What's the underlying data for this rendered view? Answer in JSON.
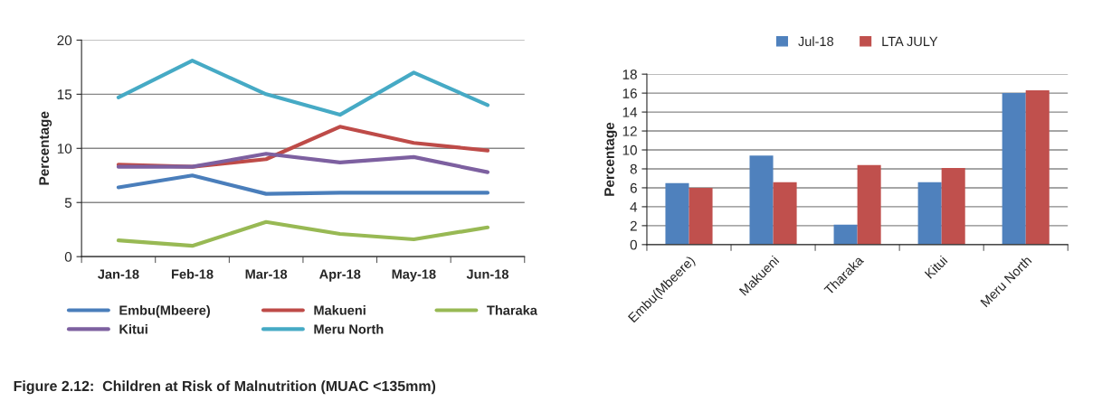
{
  "chart_data": [
    {
      "type": "line",
      "ylabel": "Percentage",
      "categories": [
        "Jan-18",
        "Feb-18",
        "Mar-18",
        "Apr-18",
        "May-18",
        "Jun-18"
      ],
      "ylim": [
        0,
        20
      ],
      "yticks": [
        0,
        5,
        10,
        15,
        20
      ],
      "grid": "y",
      "legend": "bottom",
      "line_style": "solid",
      "series": [
        {
          "name": "Embu(Mbeere)",
          "color": "#4a7ebb",
          "values": [
            6.4,
            7.5,
            5.8,
            5.9,
            5.9,
            5.9
          ]
        },
        {
          "name": "Makueni",
          "color": "#be4b48",
          "values": [
            8.5,
            8.3,
            9.0,
            12.0,
            10.5,
            9.8
          ]
        },
        {
          "name": "Tharaka",
          "color": "#98b954",
          "values": [
            1.5,
            1.0,
            3.2,
            2.1,
            1.6,
            2.7
          ]
        },
        {
          "name": "Kitui",
          "color": "#7d60a0",
          "values": [
            8.3,
            8.3,
            9.5,
            8.7,
            9.2,
            7.8
          ]
        },
        {
          "name": "Meru North",
          "color": "#46aac5",
          "values": [
            14.7,
            18.1,
            15.0,
            13.1,
            17.0,
            14.0
          ]
        }
      ],
      "annotations": [
        "Figure 2.12:  Children at Risk of Malnutrition (MUAC <135mm)"
      ]
    },
    {
      "type": "bar",
      "ylabel": "Percentage",
      "categories": [
        "Embu(Mbeere)",
        "Makueni",
        "Tharaka",
        "Kitui",
        "Meru North"
      ],
      "ylim": [
        0,
        18
      ],
      "yticks": [
        0,
        2,
        4,
        6,
        8,
        10,
        12,
        14,
        16,
        18
      ],
      "grid": "y",
      "legend": "top",
      "series": [
        {
          "name": "Jul-18",
          "color": "#4f81bd",
          "values": [
            6.5,
            9.4,
            2.1,
            6.6,
            16.0
          ]
        },
        {
          "name": "LTA JULY",
          "color": "#c0504d",
          "values": [
            6.0,
            6.6,
            8.4,
            8.1,
            16.3
          ]
        }
      ]
    }
  ]
}
